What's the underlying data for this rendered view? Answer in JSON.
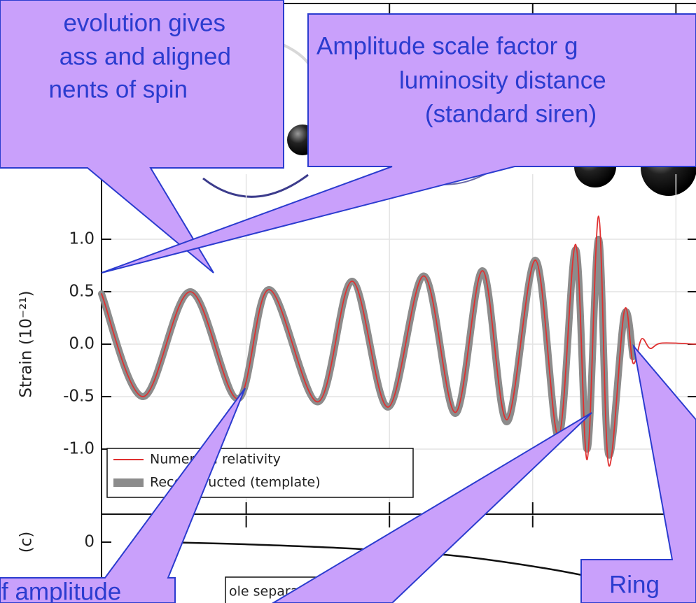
{
  "chart_data": [
    {
      "type": "line",
      "ylabel": "Strain (10⁻²¹)",
      "x": [
        0.2495,
        0.264,
        0.2805,
        0.297,
        0.308,
        0.325,
        0.337,
        0.3495,
        0.362,
        0.373,
        0.3825,
        0.391,
        0.401,
        0.409,
        0.415,
        0.419,
        0.423,
        0.4265,
        0.432,
        0.435,
        0.438,
        0.441,
        0.445,
        0.457
      ],
      "series": [
        {
          "name": "Reconstructed (template)",
          "color": "#8c8c8c",
          "values": [
            0.48,
            -0.5,
            0.5,
            -0.52,
            0.52,
            -0.55,
            0.6,
            -0.6,
            0.65,
            -0.66,
            0.7,
            -0.74,
            0.8,
            -0.88,
            0.9,
            -1.0,
            1.0,
            -1.05,
            0.28,
            -0.12,
            null,
            null,
            null,
            null
          ]
        },
        {
          "name": "Numerical relativity",
          "color": "#e03030",
          "values": [
            0.48,
            -0.5,
            0.5,
            -0.52,
            0.52,
            -0.55,
            0.6,
            -0.6,
            0.65,
            -0.65,
            0.7,
            -0.72,
            0.8,
            -0.88,
            0.95,
            -1.1,
            1.22,
            -1.15,
            0.32,
            -0.18,
            0.05,
            -0.04,
            0.01,
            0.0
          ]
        }
      ],
      "xlim": [
        0.2495,
        0.457
      ],
      "xticks": [
        0.3,
        0.35,
        0.4,
        0.45
      ],
      "ylim": [
        -1.62,
        1.62
      ],
      "yticks": [
        {
          "value": 1,
          "label": "1.0"
        },
        {
          "value": 0.5,
          "label": "0.5"
        },
        {
          "value": 0,
          "label": "0.0"
        },
        {
          "value": -0.5,
          "label": "-0.5"
        },
        {
          "value": -1,
          "label": "-1.0"
        }
      ],
      "grid": true,
      "annotations": [
        [
          "evolution gives",
          "ass and aligned",
          "nents of spin"
        ],
        [
          "Amplitude scale factor g",
          "luminosity distance",
          "(standard siren)"
        ],
        [
          "f amplitude"
        ],
        [
          "Ring"
        ]
      ]
    },
    {
      "type": "line",
      "ylabel": "(c)",
      "x": [
        0.2715,
        0.2995,
        0.336,
        0.373,
        0.4045,
        0.429,
        0.457
      ],
      "series": [
        {
          "name": "ole separation",
          "color": "#111111",
          "values": [
            0.0,
            -0.02,
            -0.06,
            -0.13,
            -0.25,
            -0.38,
            -0.55
          ]
        }
      ],
      "xlim": [
        0.2495,
        0.457
      ],
      "xticks": [
        0.3,
        0.35,
        0.4,
        0.45
      ],
      "ylim": [
        -0.6,
        0.25
      ],
      "yticks": [
        0
      ]
    }
  ]
}
